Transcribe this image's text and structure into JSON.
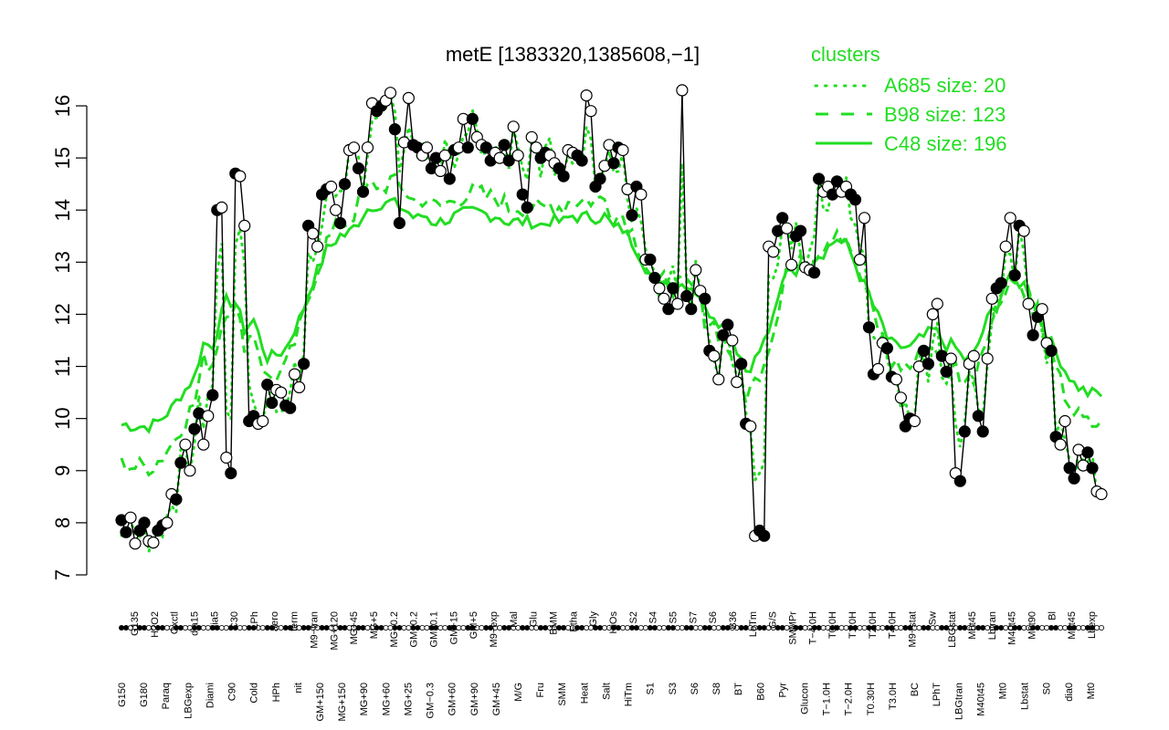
{
  "chart_data": {
    "type": "line",
    "title": "metE [1383320,1385608,−1]",
    "xlabel": "",
    "ylabel": "",
    "ylim": [
      7,
      16
    ],
    "yticks": [
      7,
      8,
      9,
      10,
      11,
      12,
      13,
      14,
      15,
      16
    ],
    "grid": false,
    "legend_title": "clusters",
    "legend_position": "top-right",
    "legend": [
      {
        "name": "A685 size: 20",
        "style": "dotted",
        "color": "#22dd22"
      },
      {
        "name": "B98 size: 123",
        "style": "dashed",
        "color": "#22dd22"
      },
      {
        "name": "C48 size: 196",
        "style": "solid",
        "color": "#22dd22"
      }
    ],
    "x_tick_labels_upper": [
      "G135",
      "H2O2",
      "Oxctl",
      "dia15",
      "dia5",
      "C30",
      "LPh",
      "aero",
      "ferm",
      "M9−tran",
      "MG+120",
      "MG+45",
      "MG+5",
      "MG−0.2",
      "GM−0.2",
      "GM−0.1",
      "GM+15",
      "GM+5",
      "M9−exp",
      "Mal",
      "Glu",
      "BMM",
      "Etha",
      "Gly",
      "HiOs",
      "S2",
      "S4",
      "S5",
      "S7",
      "S6",
      "B36",
      "LoTm",
      "G/S",
      "SMMPr",
      "T−4.0H",
      "T0.0H",
      "T1.0H",
      "T2.0H",
      "T4.0H",
      "M9−stat",
      "Sw",
      "LBGstat",
      "M0t45",
      "Lbtran",
      "M40t45",
      "M0t90",
      "Bl",
      "M0t45",
      "Lbexp"
    ],
    "x_tick_labels_lower": [
      "G150",
      "G180",
      "Paraq",
      "LBGexp",
      "Diami",
      "C90",
      "Cold",
      "HPh",
      "nit",
      "GM+150",
      "MG+150",
      "MG+90",
      "MG+60",
      "MG+25",
      "GM−0.3",
      "GM+60",
      "GM+90",
      "GM+45",
      "M/G",
      "Fru",
      "SMM",
      "Heat",
      "Salt",
      "HiTm",
      "S1",
      "S3",
      "S6",
      "S8",
      "BT",
      "B60",
      "Pyr",
      "Glucon",
      "T−1.0H",
      "T−2.0H",
      "T0.30H",
      "T3.0H",
      "BC",
      "LPhT",
      "LBGtran",
      "M40t45",
      "Mt0",
      "Lbstat",
      "S0",
      "dia0",
      "Mt0"
    ],
    "series": [
      {
        "name": "metE",
        "color": "#000000",
        "values": [
          8.05,
          7.82,
          8.1,
          7.6,
          7.85,
          8.0,
          7.65,
          7.62,
          7.85,
          7.95,
          8.0,
          8.55,
          8.45,
          9.15,
          9.5,
          9.0,
          9.8,
          10.1,
          9.5,
          10.05,
          10.45,
          14.0,
          14.05,
          9.25,
          8.95,
          14.7,
          14.65,
          13.7,
          9.95,
          10.05,
          9.9,
          9.95,
          10.65,
          10.3,
          10.55,
          10.5,
          10.25,
          10.2,
          10.85,
          10.6,
          11.05,
          13.7,
          13.55,
          13.3,
          14.3,
          14.4,
          14.45,
          14.0,
          13.75,
          14.5,
          15.15,
          15.2,
          14.8,
          14.35,
          15.2,
          16.05,
          15.9,
          16.0,
          16.1,
          16.25,
          15.55,
          13.75,
          15.3,
          16.15,
          15.25,
          15.2,
          15.05,
          15.2,
          14.8,
          15.0,
          14.75,
          15.05,
          14.6,
          15.15,
          15.2,
          15.75,
          15.2,
          15.75,
          15.4,
          15.25,
          15.2,
          14.95,
          15.1,
          15.0,
          15.25,
          14.95,
          15.6,
          15.05,
          14.3,
          14.05,
          15.4,
          15.2,
          15.0,
          15.1,
          15.05,
          14.9,
          14.8,
          14.65,
          15.15,
          15.1,
          15.05,
          14.95,
          16.2,
          15.9,
          14.45,
          14.6,
          14.85,
          15.25,
          14.9,
          15.2,
          15.15,
          14.4,
          13.9,
          14.45,
          14.3,
          13.05,
          13.05,
          12.7,
          12.5,
          12.3,
          12.1,
          12.5,
          12.2,
          16.3,
          12.35,
          12.1,
          12.85,
          12.45,
          12.3,
          11.3,
          11.2,
          10.75,
          11.6,
          11.8,
          11.5,
          10.7,
          11.05,
          9.9,
          9.85,
          7.75,
          7.85,
          7.75,
          13.3,
          13.2,
          13.6,
          13.85,
          13.65,
          12.95,
          13.5,
          13.6,
          12.9,
          12.85,
          12.8,
          14.6,
          14.35,
          14.45,
          14.3,
          14.55,
          14.35,
          14.45,
          14.3,
          14.2,
          13.05,
          13.85,
          11.75,
          10.85,
          10.95,
          11.45,
          11.35,
          10.8,
          10.75,
          10.4,
          9.85,
          10.0,
          9.95,
          11.0,
          11.3,
          11.05,
          12.0,
          12.2,
          11.2,
          10.9,
          11.15,
          8.95,
          8.8,
          9.75,
          11.05,
          11.2,
          10.05,
          9.75,
          11.15,
          12.3,
          12.5,
          12.6,
          13.3,
          13.85,
          12.75,
          13.7,
          13.6,
          12.2,
          11.6,
          11.95,
          12.1,
          11.45,
          11.3,
          9.65,
          9.5,
          9.95,
          9.05,
          8.85,
          9.4,
          9.1,
          9.35,
          9.05,
          8.6,
          8.55
        ]
      }
    ]
  }
}
